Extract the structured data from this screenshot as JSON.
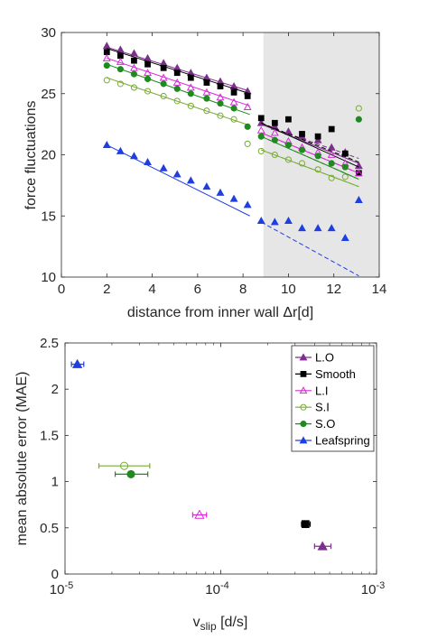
{
  "chart_data": [
    {
      "type": "scatter",
      "xlabel": "distance from inner wall Δr[d]",
      "ylabel": "force fluctuations",
      "xlim": [
        0,
        14
      ],
      "ylim": [
        10,
        30
      ],
      "xticks": [
        0,
        2,
        4,
        6,
        8,
        10,
        12,
        14
      ],
      "yticks": [
        10,
        15,
        20,
        25,
        30
      ],
      "grid": false,
      "shaded_region": {
        "x_from": 8.9,
        "x_to": 14,
        "color": "#e6e6e6"
      },
      "series": [
        {
          "key": "LO",
          "color": "#7e2f8e",
          "marker": "triangle",
          "filled": true,
          "points": [
            [
              2.0,
              28.9
            ],
            [
              2.6,
              28.6
            ],
            [
              3.2,
              28.3
            ],
            [
              3.8,
              27.9
            ],
            [
              4.5,
              27.5
            ],
            [
              5.1,
              27.1
            ],
            [
              5.7,
              26.7
            ],
            [
              6.4,
              26.3
            ],
            [
              7.0,
              26.0
            ],
            [
              7.6,
              25.6
            ],
            [
              8.2,
              25.2
            ],
            [
              8.8,
              22.6
            ],
            [
              9.4,
              22.3
            ],
            [
              10.0,
              21.9
            ],
            [
              10.6,
              21.5
            ],
            [
              11.3,
              21.2
            ],
            [
              11.9,
              20.6
            ],
            [
              12.5,
              20.2
            ],
            [
              13.1,
              19.1
            ]
          ],
          "fit_in": [
            [
              2.0,
              28.8
            ],
            [
              8.3,
              25.2
            ]
          ],
          "fit_out": [
            [
              8.8,
              22.5
            ],
            [
              13.1,
              19.3
            ]
          ],
          "extrap": [
            [
              8.8,
              22.5
            ],
            [
              13.1,
              19.7
            ]
          ]
        },
        {
          "key": "Smooth",
          "color": "#000000",
          "marker": "square",
          "filled": true,
          "points": [
            [
              2.0,
              28.4
            ],
            [
              2.6,
              28.1
            ],
            [
              3.2,
              27.7
            ],
            [
              3.8,
              27.4
            ],
            [
              4.5,
              27.1
            ],
            [
              5.1,
              26.7
            ],
            [
              5.7,
              26.3
            ],
            [
              6.4,
              25.9
            ],
            [
              7.0,
              25.6
            ],
            [
              7.6,
              25.1
            ],
            [
              8.2,
              24.8
            ],
            [
              8.8,
              23.0
            ],
            [
              9.4,
              22.6
            ],
            [
              10.0,
              22.9
            ],
            [
              10.6,
              21.7
            ],
            [
              11.3,
              21.5
            ],
            [
              11.9,
              22.1
            ],
            [
              12.5,
              20.1
            ],
            [
              13.1,
              18.5
            ]
          ],
          "fit_in": [
            [
              2.0,
              28.7
            ],
            [
              8.3,
              25.0
            ]
          ],
          "fit_out": [
            [
              8.8,
              22.6
            ],
            [
              13.1,
              19.0
            ]
          ],
          "extrap": [
            [
              8.8,
              22.6
            ],
            [
              13.1,
              19.4
            ]
          ]
        },
        {
          "key": "LI",
          "color": "#d62bd6",
          "marker": "triangle",
          "filled": false,
          "points": [
            [
              2.0,
              27.9
            ],
            [
              2.6,
              27.6
            ],
            [
              3.2,
              27.1
            ],
            [
              3.8,
              26.7
            ],
            [
              4.5,
              26.3
            ],
            [
              5.1,
              25.9
            ],
            [
              5.7,
              25.5
            ],
            [
              6.4,
              25.1
            ],
            [
              7.0,
              24.7
            ],
            [
              7.6,
              24.3
            ],
            [
              8.2,
              23.9
            ],
            [
              8.8,
              22.0
            ],
            [
              9.4,
              21.8
            ],
            [
              10.0,
              21.1
            ],
            [
              10.6,
              20.6
            ],
            [
              11.3,
              20.2
            ],
            [
              11.9,
              20.0
            ],
            [
              12.5,
              19.3
            ],
            [
              13.1,
              18.5
            ]
          ],
          "fit_in": [
            [
              2.0,
              27.9
            ],
            [
              8.3,
              24.0
            ]
          ],
          "fit_out": [
            [
              8.8,
              21.8
            ],
            [
              13.1,
              18.5
            ]
          ],
          "extrap": [
            [
              8.8,
              21.8
            ],
            [
              13.1,
              18.5
            ]
          ]
        },
        {
          "key": "SI",
          "color": "#77ac30",
          "marker": "circle",
          "filled": false,
          "points": [
            [
              2.0,
              26.1
            ],
            [
              2.6,
              25.8
            ],
            [
              3.2,
              25.5
            ],
            [
              3.8,
              25.2
            ],
            [
              4.5,
              24.8
            ],
            [
              5.1,
              24.4
            ],
            [
              5.7,
              24.0
            ],
            [
              6.4,
              23.6
            ],
            [
              7.0,
              23.2
            ],
            [
              7.6,
              22.9
            ],
            [
              8.2,
              20.9
            ],
            [
              8.8,
              20.3
            ],
            [
              9.4,
              20.0
            ],
            [
              10.0,
              19.6
            ],
            [
              10.6,
              19.3
            ],
            [
              11.3,
              18.8
            ],
            [
              11.9,
              18.1
            ],
            [
              12.5,
              18.2
            ],
            [
              13.1,
              23.8
            ]
          ],
          "fit_in": [
            [
              2.0,
              26.3
            ],
            [
              8.3,
              22.4
            ]
          ],
          "fit_out": [
            [
              8.8,
              20.4
            ],
            [
              13.1,
              17.4
            ]
          ],
          "extrap": [
            [
              8.8,
              20.4
            ],
            [
              13.1,
              17.4
            ]
          ]
        },
        {
          "key": "SO",
          "color": "#1f8a1f",
          "marker": "circle",
          "filled": true,
          "points": [
            [
              2.0,
              27.3
            ],
            [
              2.6,
              27.0
            ],
            [
              3.2,
              26.6
            ],
            [
              3.8,
              26.2
            ],
            [
              4.5,
              25.8
            ],
            [
              5.1,
              25.4
            ],
            [
              5.7,
              25.0
            ],
            [
              6.4,
              24.6
            ],
            [
              7.0,
              24.2
            ],
            [
              7.6,
              23.8
            ],
            [
              8.2,
              22.3
            ],
            [
              8.8,
              21.5
            ],
            [
              9.4,
              21.2
            ],
            [
              10.0,
              20.8
            ],
            [
              10.6,
              20.4
            ],
            [
              11.3,
              19.9
            ],
            [
              11.9,
              19.3
            ],
            [
              12.5,
              19.0
            ],
            [
              13.1,
              22.9
            ]
          ],
          "fit_in": [
            [
              2.0,
              27.4
            ],
            [
              8.3,
              23.3
            ]
          ],
          "fit_out": [
            [
              8.8,
              21.5
            ],
            [
              13.1,
              18.0
            ]
          ],
          "extrap": [
            [
              8.8,
              21.5
            ],
            [
              13.1,
              18.0
            ]
          ]
        },
        {
          "key": "Leafspring",
          "color": "#1f3fe0",
          "marker": "triangle",
          "filled": true,
          "points": [
            [
              2.0,
              20.8
            ],
            [
              2.6,
              20.3
            ],
            [
              3.2,
              19.9
            ],
            [
              3.8,
              19.4
            ],
            [
              4.5,
              18.9
            ],
            [
              5.1,
              18.4
            ],
            [
              5.7,
              17.9
            ],
            [
              6.4,
              17.4
            ],
            [
              7.0,
              16.9
            ],
            [
              7.6,
              16.4
            ],
            [
              8.2,
              15.9
            ],
            [
              8.8,
              14.6
            ],
            [
              9.4,
              14.5
            ],
            [
              10.0,
              14.6
            ],
            [
              10.6,
              14.0
            ],
            [
              11.3,
              14.0
            ],
            [
              11.9,
              14.0
            ],
            [
              12.5,
              13.2
            ],
            [
              13.1,
              16.3
            ]
          ],
          "fit_in": [
            [
              2.0,
              20.8
            ],
            [
              8.3,
              15.0
            ]
          ],
          "fit_out": [],
          "extrap": [
            [
              8.8,
              14.5
            ],
            [
              13.1,
              10.1
            ]
          ]
        }
      ]
    },
    {
      "type": "scatter",
      "xlabel": "v",
      "xlabel_sub": "slip",
      "xlabel_unit": " [d/s]",
      "ylabel": "mean absolute error (MAE)",
      "xscale": "log",
      "xlim": [
        1e-05,
        0.001
      ],
      "ylim": [
        0,
        2.5
      ],
      "xticks": [
        {
          "v": 1e-05,
          "base": "10",
          "exp": "-5"
        },
        {
          "v": 0.0001,
          "base": "10",
          "exp": "-4"
        },
        {
          "v": 0.001,
          "base": "10",
          "exp": "-3"
        }
      ],
      "yticks": [
        0,
        0.5,
        1,
        1.5,
        2,
        2.5
      ],
      "legend_position": "top-right",
      "series": [
        {
          "name": "L.O",
          "color": "#7e2f8e",
          "marker": "triangle",
          "filled": true,
          "x": 0.00045,
          "y": 0.3,
          "xerr": [
            0.0004,
            0.00051
          ]
        },
        {
          "name": "Smooth",
          "color": "#000000",
          "marker": "square",
          "filled": true,
          "x": 0.00035,
          "y": 0.54,
          "xerr": [
            0.00033,
            0.000375
          ]
        },
        {
          "name": "L.I",
          "color": "#d62bd6",
          "marker": "triangle",
          "filled": false,
          "x": 7.3e-05,
          "y": 0.64,
          "xerr": [
            6.6e-05,
            8.1e-05
          ]
        },
        {
          "name": "S.I",
          "color": "#77ac30",
          "marker": "circle",
          "filled": false,
          "x": 2.4e-05,
          "y": 1.17,
          "xerr": [
            1.65e-05,
            3.5e-05
          ]
        },
        {
          "name": "S.O",
          "color": "#1f8a1f",
          "marker": "circle",
          "filled": true,
          "x": 2.65e-05,
          "y": 1.08,
          "xerr": [
            2.1e-05,
            3.4e-05
          ]
        },
        {
          "name": "Leafspring",
          "color": "#1f3fe0",
          "marker": "triangle",
          "filled": true,
          "x": 1.2e-05,
          "y": 2.27,
          "xerr": [
            1.1e-05,
            1.32e-05
          ]
        }
      ]
    }
  ]
}
